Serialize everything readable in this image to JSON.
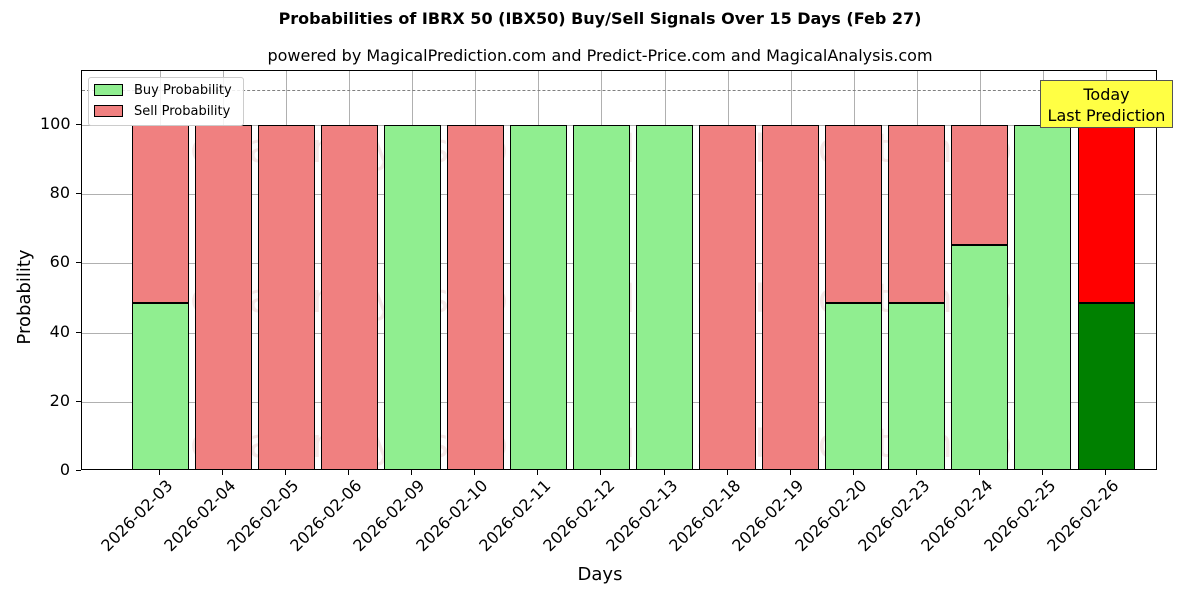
{
  "header": {
    "title": "Probabilities of IBRX 50 (IBX50) Buy/Sell Signals Over 15 Days (Feb 27)",
    "subtitle": "powered by MagicalPrediction.com and Predict-Price.com and MagicalAnalysis.com"
  },
  "legend": {
    "buy_label": "Buy Probability",
    "sell_label": "Sell Probability"
  },
  "annotation": {
    "line1": "Today",
    "line2": "Last Prediction"
  },
  "axes": {
    "xlabel": "Days",
    "ylabel": "Probability",
    "yticks": [
      "0",
      "20",
      "40",
      "60",
      "80",
      "100"
    ]
  },
  "watermarks": [
    "MagicalAnalysis.com",
    "MagicalPrediction.com"
  ],
  "colors": {
    "buy": "#90ee90",
    "sell": "#f08080",
    "buy_today": "#008000",
    "sell_today": "#ff0000",
    "annotation_bg": "#ffff44"
  },
  "chart_data": {
    "type": "bar",
    "stacked": true,
    "title": "Probabilities of IBRX 50 (IBX50) Buy/Sell Signals Over 15 Days (Feb 27)",
    "subtitle": "powered by MagicalPrediction.com and Predict-Price.com and MagicalAnalysis.com",
    "xlabel": "Days",
    "ylabel": "Probability",
    "ylim": [
      0,
      115
    ],
    "yticks": [
      0,
      20,
      40,
      60,
      80,
      100
    ],
    "grid": true,
    "legend_position": "upper left",
    "reference_line": {
      "y": 110,
      "style": "dashed",
      "color": "#808080"
    },
    "categories": [
      "2026-02-03",
      "2026-02-04",
      "2026-02-05",
      "2026-02-06",
      "2026-02-09",
      "2026-02-10",
      "2026-02-11",
      "2026-02-12",
      "2026-02-13",
      "2026-02-18",
      "2026-02-19",
      "2026-02-20",
      "2026-02-23",
      "2026-02-24",
      "2026-02-25",
      "2026-02-26"
    ],
    "series": [
      {
        "name": "Buy Probability",
        "values": [
          48.5,
          0,
          0,
          0,
          100,
          0,
          100,
          100,
          100,
          0,
          0,
          48.5,
          48.5,
          65.3,
          100,
          48.5
        ]
      },
      {
        "name": "Sell Probability",
        "values": [
          51.5,
          100,
          100,
          100,
          0,
          100,
          0,
          0,
          0,
          100,
          100,
          51.5,
          51.5,
          34.7,
          0,
          51.5
        ]
      }
    ],
    "annotations": [
      {
        "text": "Today\nLast Prediction",
        "x": "2026-02-26"
      }
    ]
  }
}
